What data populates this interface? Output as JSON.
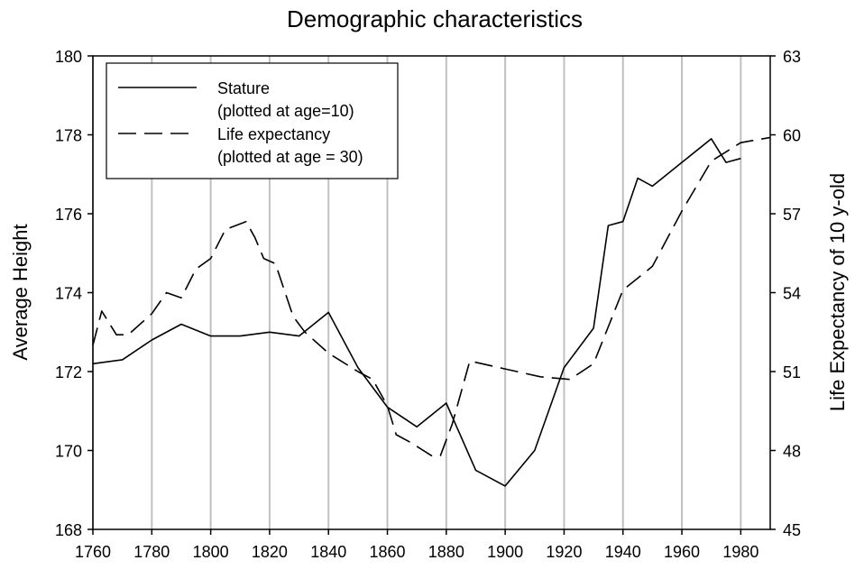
{
  "chart_data": {
    "type": "line",
    "title": "Demographic characteristics",
    "xlabel": "",
    "ylabel": "Average Height",
    "y2label": "Life Expectancy of 10 y-old",
    "xlim": [
      1760,
      1990
    ],
    "ylim": [
      168,
      180
    ],
    "y2lim": [
      45,
      63
    ],
    "x_ticks": [
      "1760",
      "1780",
      "1800",
      "1820",
      "1840",
      "1860",
      "1880",
      "1900",
      "1920",
      "1940",
      "1960",
      "1980"
    ],
    "y_ticks": [
      "168",
      "170",
      "172",
      "174",
      "176",
      "178",
      "180"
    ],
    "y2_ticks": [
      "45",
      "48",
      "51",
      "54",
      "57",
      "60",
      "63"
    ],
    "grid": true,
    "legend_position": "top-left",
    "legend": [
      {
        "label": "Stature",
        "sublabel": "(plotted at age=10)",
        "style": "solid"
      },
      {
        "label": "Life expectancy",
        "sublabel": "(plotted at age = 30)",
        "style": "dashed"
      }
    ],
    "series": [
      {
        "name": "Stature",
        "axis": "left",
        "style": "solid",
        "x": [
          1760,
          1770,
          1780,
          1790,
          1800,
          1810,
          1820,
          1830,
          1840,
          1850,
          1860,
          1870,
          1880,
          1890,
          1900,
          1910,
          1920,
          1930,
          1935,
          1940,
          1945,
          1950,
          1960,
          1970,
          1975,
          1980
        ],
        "y": [
          172.2,
          172.3,
          172.8,
          173.2,
          172.9,
          172.9,
          173.0,
          172.9,
          173.5,
          172.1,
          171.1,
          170.6,
          171.2,
          169.5,
          169.1,
          170.0,
          172.1,
          173.1,
          175.7,
          175.8,
          176.9,
          176.7,
          177.3,
          177.9,
          177.3,
          177.4
        ]
      },
      {
        "name": "Life expectancy",
        "axis": "right",
        "style": "dashed",
        "x": [
          1760,
          1763,
          1768,
          1772,
          1780,
          1785,
          1790,
          1795,
          1800,
          1805,
          1812,
          1815,
          1818,
          1822,
          1828,
          1832,
          1840,
          1850,
          1855,
          1860,
          1863,
          1868,
          1875,
          1878,
          1882,
          1888,
          1900,
          1912,
          1922,
          1930,
          1940,
          1950,
          1960,
          1970,
          1980,
          1990
        ],
        "y": [
          52.0,
          53.3,
          52.4,
          52.4,
          53.2,
          54.0,
          53.8,
          54.9,
          55.3,
          56.4,
          56.7,
          56.1,
          55.3,
          55.1,
          53.1,
          52.5,
          51.7,
          51.0,
          50.7,
          49.7,
          48.6,
          48.3,
          47.8,
          47.8,
          49.0,
          51.4,
          51.1,
          50.8,
          50.7,
          51.3,
          54.1,
          55.0,
          57.1,
          59.0,
          59.7,
          59.9
        ]
      }
    ]
  }
}
